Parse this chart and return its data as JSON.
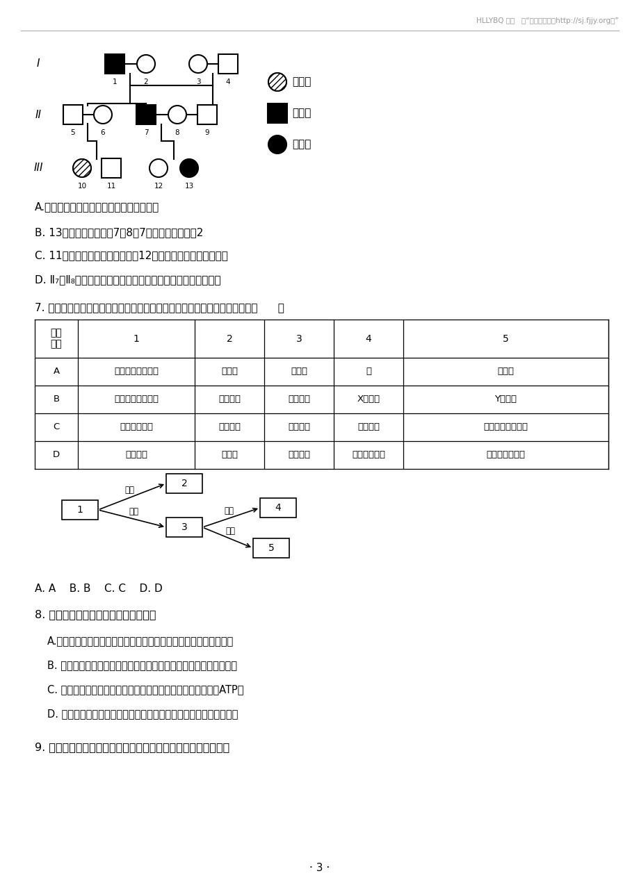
{
  "header": "HLLYBQ 整理   供“高中试卷网（http://sj.fjjy.org）”",
  "legend_items": [
    "甲病女",
    "乙病男",
    "乙病女"
  ],
  "options_q6": [
    "A.甲病为常染色体隐性遗传病，乙病为色盲",
    "B. 13号的致病基因来自7和8，7号的致病基因来自2",
    "C. 11号携带甲致病基因的几率比12号携带乙致病基因的几率大",
    "D. Ⅱ₇和Ⅱ₈生出两病兼发男孩的概率和两病兼发女孩的概率一样"
  ],
  "q7_text": "7. 将与生物学有关的内容依次填入图中各框中，其中包含关系错误的选项是（      ）",
  "table_col0_header": "框号\n选项",
  "table_header_cols": [
    "1",
    "2",
    "3",
    "4",
    "5"
  ],
  "table_rows": [
    [
      "A",
      "组成细胞的化合物",
      "有机物",
      "无机物",
      "水",
      "无机盐"
    ],
    [
      "B",
      "人体细胞的染色体",
      "常染色体",
      "性染色体",
      "X染色体",
      "Y染色体"
    ],
    [
      "C",
      "物质跨膜运输",
      "主动运输",
      "被动运输",
      "自由扩散",
      "协助（易化）扩散"
    ],
    [
      "D",
      "有丝分裂",
      "分裂期",
      "分裂间期",
      "染色单体分离",
      "同源染色体分离"
    ]
  ],
  "answer_line": "A. A    B. B    C. C    D. D",
  "q8_text": "8. 下列与细胞呼吸有关的叙述正确的是",
  "q8_options": [
    "A.酵母菌经研磨、搅拌、加压过滤后得到的提取液仍可进行呼吸作用",
    "B. 缺氧时有氧呼吸的第三阶段无法进行，但是第一、二阶段不受影响",
    "C. 细胞呼吸包含一系列的放能反应，但仅有少部分能量储存到ATP中",
    "D. 细胞无线粒体时只能进行无氧呼吸，有线粒体时仍可进行无氧呼吸"
  ],
  "q9_text": "9. 下列实验中实验材料、试剂或者操作与实验目的不相符合的是",
  "page_number": "· 3 ·",
  "bg_color": "#ffffff",
  "text_color": "#000000",
  "gray_color": "#999999"
}
